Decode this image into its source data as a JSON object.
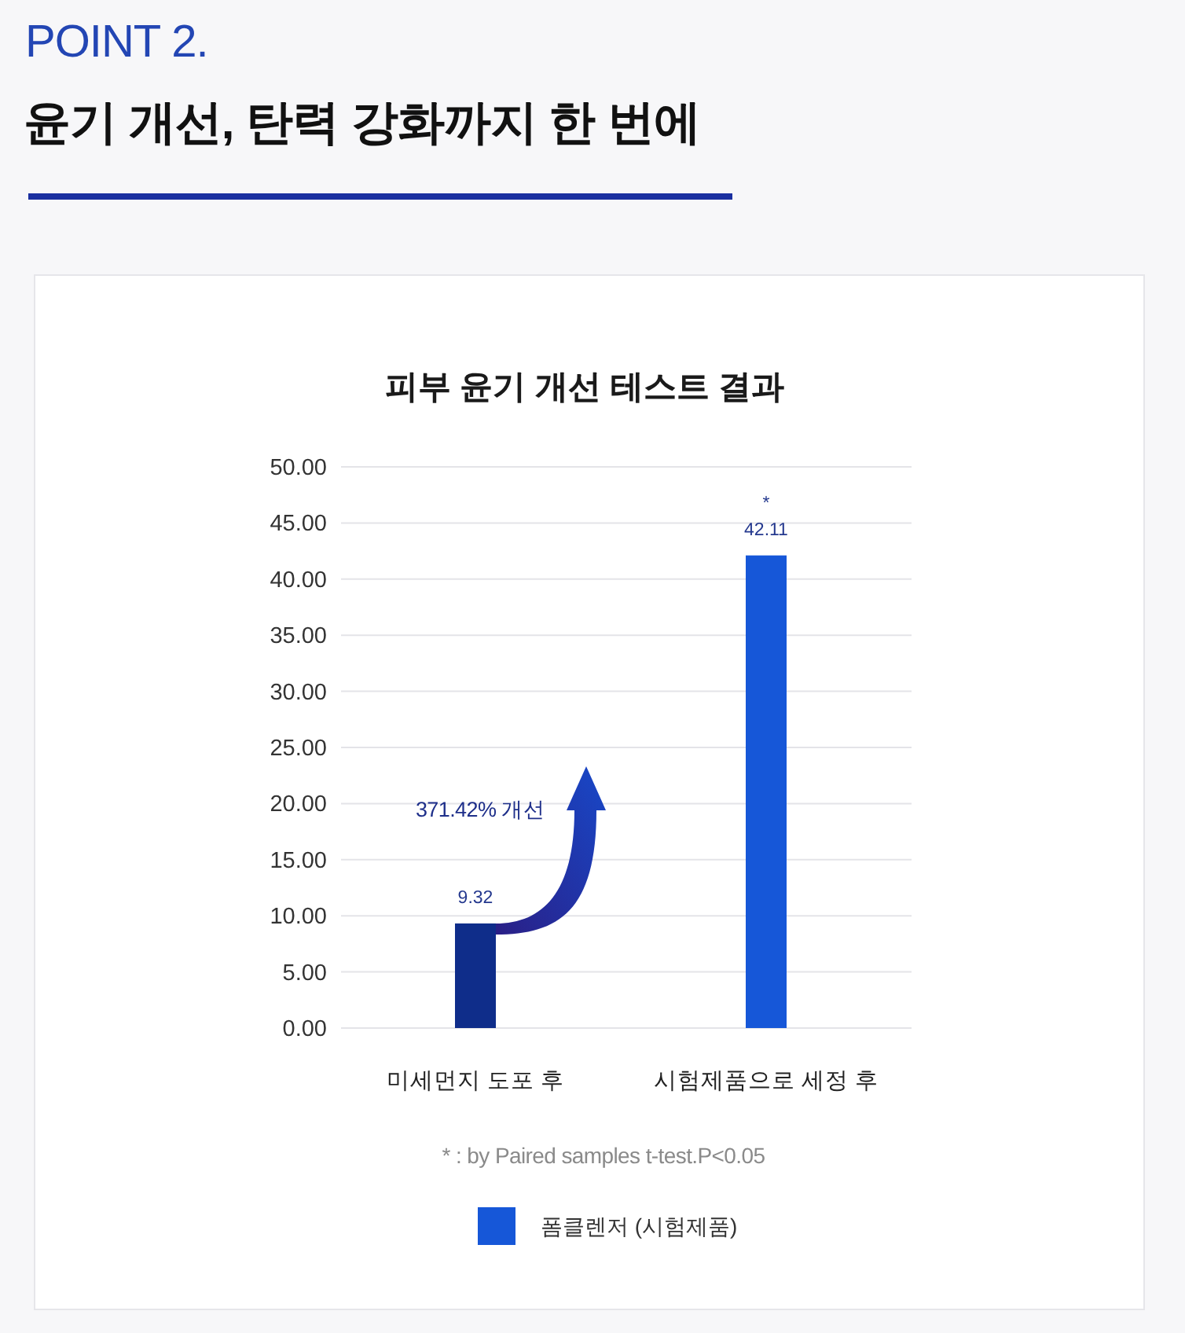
{
  "chart_data": {
    "type": "bar",
    "title": "윤기 개선, 탄력 강화까지 한 번에",
    "subtitle": "피부 윤기 개선 테스트 결과",
    "categories": [
      "미세먼지 도포 후",
      "시험제품으로 세정 후"
    ],
    "series": [
      {
        "name": "폼클렌저 (시험제품)",
        "color": "#1657d8",
        "colors": [
          "#0f2d8a",
          "#1657d8"
        ],
        "values": [
          9.32,
          42.11
        ]
      }
    ],
    "ylim": [
      0,
      50
    ],
    "yticks": [
      {
        "value": 0,
        "label": "0.00"
      },
      {
        "value": 5,
        "label": "5.00"
      },
      {
        "value": 10,
        "label": "10.00"
      },
      {
        "value": 15,
        "label": "15.00"
      },
      {
        "value": 20,
        "label": "20.00"
      },
      {
        "value": 25,
        "label": "25.00"
      },
      {
        "value": 30,
        "label": "30.00"
      },
      {
        "value": 35,
        "label": "35.00"
      },
      {
        "value": 40,
        "label": "40.00"
      },
      {
        "value": 45,
        "label": "45.00"
      },
      {
        "value": 50,
        "label": "50.00"
      }
    ],
    "grid": "y",
    "data_labels": true,
    "legend": "bottom",
    "annotations": [
      "POINT 2.",
      "371.42% 개선",
      {
        "text": "*",
        "x": "시험제품으로 세정 후",
        "y": 42.11
      },
      "* : by Paired samples t-test.P<0.05"
    ]
  }
}
